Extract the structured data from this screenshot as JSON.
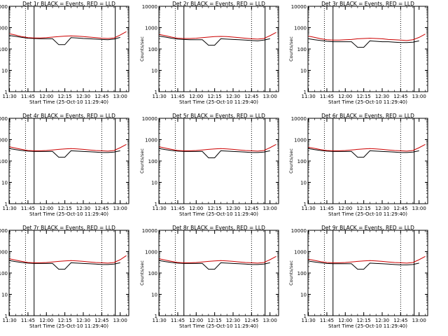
{
  "chart_data": [
    {
      "type": "line",
      "title": "Det 1r BLACK = Events, RED = LLD",
      "xlabel": "Start Time (25-Oct-10 11:29:40)",
      "ylabel": "Counts/sec",
      "yscale": "log",
      "ylim": [
        1,
        10000
      ],
      "xlim": [
        "11:29:40",
        "13:07:00"
      ],
      "x_ticks": [
        "11:30",
        "11:45",
        "12:00",
        "12:15",
        "12:30",
        "12:45",
        "13:00"
      ],
      "y_ticks": [
        "1",
        "10",
        "100",
        "1000",
        "10000"
      ],
      "x": [
        "11:30",
        "11:35",
        "11:40",
        "11:45",
        "11:50",
        "11:55",
        "12:00",
        "12:05",
        "12:10",
        "12:15",
        "12:20",
        "12:25",
        "12:30",
        "12:35",
        "12:40",
        "12:45",
        "12:50",
        "12:55",
        "13:00",
        "13:05"
      ],
      "series": [
        {
          "color": "#000000",
          "values": [
            430,
            390,
            350,
            320,
            310,
            300,
            300,
            300,
            160,
            160,
            340,
            330,
            310,
            300,
            290,
            280,
            270,
            290,
            350,
            null
          ]
        },
        {
          "color": "#cc0000",
          "values": [
            520,
            450,
            380,
            340,
            330,
            330,
            340,
            360,
            380,
            400,
            410,
            400,
            380,
            360,
            340,
            320,
            310,
            330,
            450,
            650
          ]
        }
      ],
      "vlines": [
        {
          "x": "11:43",
          "style": "dotted"
        },
        {
          "x": "11:50",
          "style": "solid"
        },
        {
          "x": "12:45",
          "style": "dotted"
        },
        {
          "x": "12:56",
          "style": "solid"
        }
      ]
    },
    {
      "type": "line",
      "title": "Det 2r BLACK = Events, RED = LLD",
      "xlabel": "Start Time (25-Oct-10 11:29:40)",
      "ylabel": "Counts/sec",
      "yscale": "log",
      "ylim": [
        1,
        10000
      ],
      "xlim": [
        "11:29:40",
        "13:07:00"
      ],
      "x_ticks": [
        "11:30",
        "11:45",
        "12:00",
        "12:15",
        "12:30",
        "12:45",
        "13:00"
      ],
      "y_ticks": [
        "1",
        "10",
        "100",
        "1000",
        "10000"
      ],
      "x": [
        "11:30",
        "11:35",
        "11:40",
        "11:45",
        "11:50",
        "11:55",
        "12:00",
        "12:05",
        "12:10",
        "12:15",
        "12:20",
        "12:25",
        "12:30",
        "12:35",
        "12:40",
        "12:45",
        "12:50",
        "12:55",
        "13:00",
        "13:05"
      ],
      "series": [
        {
          "color": "#000000",
          "values": [
            400,
            360,
            320,
            290,
            280,
            270,
            270,
            270,
            150,
            150,
            300,
            290,
            280,
            270,
            260,
            250,
            240,
            260,
            300,
            null
          ]
        },
        {
          "color": "#cc0000",
          "values": [
            480,
            420,
            360,
            320,
            310,
            310,
            320,
            340,
            360,
            380,
            390,
            380,
            360,
            340,
            320,
            300,
            290,
            310,
            420,
            600
          ]
        }
      ],
      "vlines": [
        {
          "x": "11:43",
          "style": "dotted"
        },
        {
          "x": "11:50",
          "style": "solid"
        },
        {
          "x": "12:45",
          "style": "dotted"
        },
        {
          "x": "12:56",
          "style": "solid"
        }
      ]
    },
    {
      "type": "line",
      "title": "Det 3r BLACK = Events, RED = LLD",
      "xlabel": "Start Time (25-Oct-10 11:29:40)",
      "ylabel": "Counts/sec",
      "yscale": "log",
      "ylim": [
        1,
        10000
      ],
      "xlim": [
        "11:29:40",
        "13:07:00"
      ],
      "x_ticks": [
        "11:30",
        "11:45",
        "12:00",
        "12:15",
        "12:30",
        "12:45",
        "13:00"
      ],
      "y_ticks": [
        "1",
        "10",
        "100",
        "1000",
        "10000"
      ],
      "x": [
        "11:30",
        "11:35",
        "11:40",
        "11:45",
        "11:50",
        "11:55",
        "12:00",
        "12:05",
        "12:10",
        "12:15",
        "12:20",
        "12:25",
        "12:30",
        "12:35",
        "12:40",
        "12:45",
        "12:50",
        "12:55",
        "13:00",
        "13:05"
      ],
      "series": [
        {
          "color": "#000000",
          "values": [
            300,
            270,
            250,
            230,
            220,
            220,
            220,
            220,
            120,
            120,
            240,
            230,
            220,
            220,
            210,
            200,
            200,
            210,
            240,
            null
          ]
        },
        {
          "color": "#cc0000",
          "values": [
            400,
            350,
            300,
            270,
            260,
            260,
            270,
            280,
            300,
            310,
            320,
            310,
            300,
            280,
            270,
            260,
            250,
            270,
            350,
            500
          ]
        }
      ],
      "vlines": [
        {
          "x": "11:43",
          "style": "dotted"
        },
        {
          "x": "11:50",
          "style": "solid"
        },
        {
          "x": "12:45",
          "style": "dotted"
        },
        {
          "x": "12:56",
          "style": "solid"
        }
      ]
    },
    {
      "type": "line",
      "title": "Det 4r BLACK = Events, RED = LLD",
      "xlabel": "Start Time (25-Oct-10 11:29:40)",
      "ylabel": "Counts/sec",
      "yscale": "log",
      "ylim": [
        1,
        10000
      ],
      "xlim": [
        "11:29:40",
        "13:07:00"
      ],
      "x_ticks": [
        "11:30",
        "11:45",
        "12:00",
        "12:15",
        "12:30",
        "12:45",
        "13:00"
      ],
      "y_ticks": [
        "1",
        "10",
        "100",
        "1000",
        "10000"
      ],
      "x": [
        "11:30",
        "11:35",
        "11:40",
        "11:45",
        "11:50",
        "11:55",
        "12:00",
        "12:05",
        "12:10",
        "12:15",
        "12:20",
        "12:25",
        "12:30",
        "12:35",
        "12:40",
        "12:45",
        "12:50",
        "12:55",
        "13:00",
        "13:05"
      ],
      "series": [
        {
          "color": "#000000",
          "values": [
            380,
            340,
            310,
            290,
            280,
            280,
            280,
            280,
            150,
            150,
            300,
            290,
            280,
            270,
            260,
            250,
            250,
            260,
            300,
            null
          ]
        },
        {
          "color": "#cc0000",
          "values": [
            460,
            400,
            350,
            310,
            300,
            300,
            310,
            330,
            350,
            370,
            380,
            370,
            350,
            330,
            310,
            300,
            290,
            310,
            420,
            600
          ]
        }
      ],
      "vlines": [
        {
          "x": "11:43",
          "style": "dotted"
        },
        {
          "x": "11:50",
          "style": "solid"
        },
        {
          "x": "12:45",
          "style": "dotted"
        },
        {
          "x": "12:56",
          "style": "solid"
        }
      ]
    },
    {
      "type": "line",
      "title": "Det 5r BLACK = Events, RED = LLD",
      "xlabel": "Start Time (25-Oct-10 11:29:40)",
      "ylabel": "Counts/sec",
      "yscale": "log",
      "ylim": [
        1,
        10000
      ],
      "xlim": [
        "11:29:40",
        "13:07:00"
      ],
      "x_ticks": [
        "11:30",
        "11:45",
        "12:00",
        "12:15",
        "12:30",
        "12:45",
        "13:00"
      ],
      "y_ticks": [
        "1",
        "10",
        "100",
        "1000",
        "10000"
      ],
      "x": [
        "11:30",
        "11:35",
        "11:40",
        "11:45",
        "11:50",
        "11:55",
        "12:00",
        "12:05",
        "12:10",
        "12:15",
        "12:20",
        "12:25",
        "12:30",
        "12:35",
        "12:40",
        "12:45",
        "12:50",
        "12:55",
        "13:00",
        "13:05"
      ],
      "series": [
        {
          "color": "#000000",
          "values": [
            380,
            340,
            310,
            290,
            280,
            280,
            280,
            280,
            140,
            140,
            300,
            290,
            280,
            270,
            260,
            250,
            250,
            260,
            300,
            null
          ]
        },
        {
          "color": "#cc0000",
          "values": [
            460,
            400,
            350,
            310,
            300,
            300,
            310,
            330,
            350,
            370,
            380,
            370,
            350,
            330,
            310,
            300,
            290,
            310,
            420,
            600
          ]
        }
      ],
      "vlines": [
        {
          "x": "11:43",
          "style": "dotted"
        },
        {
          "x": "11:50",
          "style": "solid"
        },
        {
          "x": "12:45",
          "style": "dotted"
        },
        {
          "x": "12:56",
          "style": "solid"
        }
      ]
    },
    {
      "type": "line",
      "title": "Det 6r BLACK = Events, RED = LLD",
      "xlabel": "Start Time (25-Oct-10 11:29:40)",
      "ylabel": "Counts/sec",
      "yscale": "log",
      "ylim": [
        1,
        10000
      ],
      "xlim": [
        "11:29:40",
        "13:07:00"
      ],
      "x_ticks": [
        "11:30",
        "11:45",
        "12:00",
        "12:15",
        "12:30",
        "12:45",
        "13:00"
      ],
      "y_ticks": [
        "1",
        "10",
        "100",
        "1000",
        "10000"
      ],
      "x": [
        "11:30",
        "11:35",
        "11:40",
        "11:45",
        "11:50",
        "11:55",
        "12:00",
        "12:05",
        "12:10",
        "12:15",
        "12:20",
        "12:25",
        "12:30",
        "12:35",
        "12:40",
        "12:45",
        "12:50",
        "12:55",
        "13:00",
        "13:05"
      ],
      "series": [
        {
          "color": "#000000",
          "values": [
            380,
            340,
            310,
            290,
            280,
            280,
            280,
            280,
            150,
            150,
            300,
            290,
            280,
            270,
            260,
            250,
            250,
            260,
            300,
            null
          ]
        },
        {
          "color": "#cc0000",
          "values": [
            440,
            390,
            340,
            310,
            300,
            300,
            310,
            330,
            350,
            370,
            380,
            370,
            350,
            330,
            310,
            300,
            290,
            310,
            420,
            600
          ]
        }
      ],
      "vlines": [
        {
          "x": "11:43",
          "style": "dotted"
        },
        {
          "x": "11:50",
          "style": "solid"
        },
        {
          "x": "12:45",
          "style": "dotted"
        },
        {
          "x": "12:56",
          "style": "solid"
        }
      ]
    },
    {
      "type": "line",
      "title": "Det 7r BLACK = Events, RED = LLD",
      "xlabel": "Start Time (25-Oct-10 11:29:40)",
      "ylabel": "Counts/sec",
      "yscale": "log",
      "ylim": [
        1,
        10000
      ],
      "xlim": [
        "11:29:40",
        "13:07:00"
      ],
      "x_ticks": [
        "11:30",
        "11:45",
        "12:00",
        "12:15",
        "12:30",
        "12:45",
        "13:00"
      ],
      "y_ticks": [
        "1",
        "10",
        "100",
        "1000",
        "10000"
      ],
      "x": [
        "11:30",
        "11:35",
        "11:40",
        "11:45",
        "11:50",
        "11:55",
        "12:00",
        "12:05",
        "12:10",
        "12:15",
        "12:20",
        "12:25",
        "12:30",
        "12:35",
        "12:40",
        "12:45",
        "12:50",
        "12:55",
        "13:00",
        "13:05"
      ],
      "series": [
        {
          "color": "#000000",
          "values": [
            380,
            340,
            310,
            290,
            280,
            280,
            280,
            280,
            150,
            150,
            300,
            290,
            280,
            270,
            260,
            250,
            250,
            260,
            300,
            null
          ]
        },
        {
          "color": "#cc0000",
          "values": [
            460,
            400,
            350,
            310,
            300,
            300,
            310,
            330,
            350,
            370,
            380,
            370,
            350,
            330,
            310,
            300,
            290,
            310,
            420,
            650
          ]
        }
      ],
      "vlines": [
        {
          "x": "11:43",
          "style": "dotted"
        },
        {
          "x": "11:50",
          "style": "solid"
        },
        {
          "x": "12:45",
          "style": "dotted"
        },
        {
          "x": "12:56",
          "style": "solid"
        }
      ]
    },
    {
      "type": "line",
      "title": "Det 8r BLACK = Events, RED = LLD",
      "xlabel": "Start Time (25-Oct-10 11:29:40)",
      "ylabel": "Counts/sec",
      "yscale": "log",
      "ylim": [
        1,
        10000
      ],
      "xlim": [
        "11:29:40",
        "13:07:00"
      ],
      "x_ticks": [
        "11:30",
        "11:45",
        "12:00",
        "12:15",
        "12:30",
        "12:45",
        "13:00"
      ],
      "y_ticks": [
        "1",
        "10",
        "100",
        "1000",
        "10000"
      ],
      "x": [
        "11:30",
        "11:35",
        "11:40",
        "11:45",
        "11:50",
        "11:55",
        "12:00",
        "12:05",
        "12:10",
        "12:15",
        "12:20",
        "12:25",
        "12:30",
        "12:35",
        "12:40",
        "12:45",
        "12:50",
        "12:55",
        "13:00",
        "13:05"
      ],
      "series": [
        {
          "color": "#000000",
          "values": [
            380,
            340,
            310,
            290,
            280,
            280,
            280,
            280,
            150,
            150,
            300,
            290,
            280,
            270,
            260,
            250,
            250,
            260,
            300,
            null
          ]
        },
        {
          "color": "#cc0000",
          "values": [
            460,
            400,
            350,
            310,
            300,
            300,
            310,
            330,
            350,
            370,
            380,
            370,
            350,
            330,
            310,
            300,
            290,
            310,
            420,
            600
          ]
        }
      ],
      "vlines": [
        {
          "x": "11:43",
          "style": "dotted"
        },
        {
          "x": "11:50",
          "style": "solid"
        },
        {
          "x": "12:45",
          "style": "dotted"
        },
        {
          "x": "12:56",
          "style": "solid"
        }
      ]
    },
    {
      "type": "line",
      "title": "Det 9r BLACK = Events, RED = LLD",
      "xlabel": "Start Time (25-Oct-10 11:29:40)",
      "ylabel": "Counts/sec",
      "yscale": "log",
      "ylim": [
        1,
        10000
      ],
      "xlim": [
        "11:29:40",
        "13:07:00"
      ],
      "x_ticks": [
        "11:30",
        "11:45",
        "12:00",
        "12:15",
        "12:30",
        "12:45",
        "13:00"
      ],
      "y_ticks": [
        "1",
        "10",
        "100",
        "1000",
        "10000"
      ],
      "x": [
        "11:30",
        "11:35",
        "11:40",
        "11:45",
        "11:50",
        "11:55",
        "12:00",
        "12:05",
        "12:10",
        "12:15",
        "12:20",
        "12:25",
        "12:30",
        "12:35",
        "12:40",
        "12:45",
        "12:50",
        "12:55",
        "13:00",
        "13:05"
      ],
      "series": [
        {
          "color": "#000000",
          "values": [
            360,
            330,
            300,
            280,
            270,
            270,
            270,
            270,
            150,
            150,
            290,
            280,
            270,
            260,
            250,
            240,
            240,
            250,
            290,
            null
          ]
        },
        {
          "color": "#cc0000",
          "values": [
            440,
            390,
            340,
            310,
            300,
            300,
            310,
            330,
            350,
            370,
            380,
            370,
            350,
            330,
            310,
            300,
            290,
            310,
            420,
            600
          ]
        }
      ],
      "vlines": [
        {
          "x": "11:43",
          "style": "dotted"
        },
        {
          "x": "11:50",
          "style": "solid"
        },
        {
          "x": "12:45",
          "style": "dotted"
        },
        {
          "x": "12:56",
          "style": "solid"
        }
      ]
    }
  ]
}
